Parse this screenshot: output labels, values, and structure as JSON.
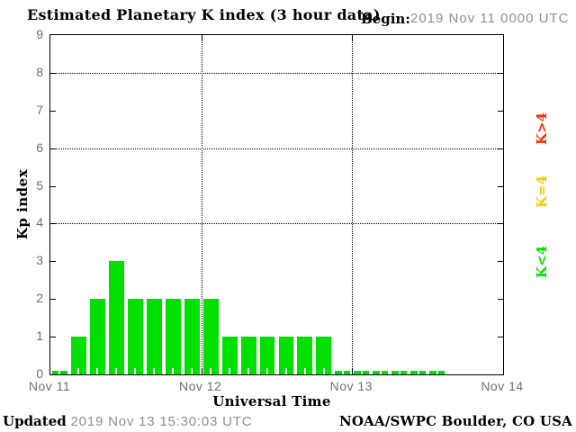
{
  "title": "Estimated Planetary K index (3 hour data)",
  "begin": {
    "label": "Begin:",
    "value": "2019 Nov 11 0000 UTC"
  },
  "footer": {
    "updated_label": "Updated",
    "updated_value": "2019 Nov 13 15:30:03 UTC",
    "source": "NOAA/SWPC Boulder, CO USA"
  },
  "chart_data": {
    "type": "bar",
    "title": "Estimated Planetary K index (3 hour data)",
    "xlabel": "Universal Time",
    "ylabel": "Kp index",
    "ylim": [
      0,
      9
    ],
    "yticks": [
      0,
      1,
      2,
      3,
      4,
      5,
      6,
      7,
      8,
      9
    ],
    "gridlines_y": [
      4,
      6,
      8
    ],
    "grid_style": "dotted",
    "x_tick_labels": [
      "Nov 11",
      "Nov 12",
      "Nov 13",
      "Nov 14"
    ],
    "bin_hours": 3,
    "bins_per_day": 8,
    "series": [
      {
        "date": "Nov 11",
        "values": [
          0,
          1,
          2,
          3,
          2,
          2,
          2,
          2
        ]
      },
      {
        "date": "Nov 12",
        "values": [
          2,
          1,
          1,
          1,
          1,
          1,
          1,
          0
        ]
      },
      {
        "date": "Nov 13",
        "values": [
          0,
          0,
          0,
          0,
          0
        ]
      }
    ],
    "bar_color": "#00e000",
    "axis_color": "#000000",
    "tick_label_color": "#707070",
    "legend_position": "right",
    "legend": [
      {
        "label": "K>4",
        "color": "#ff2800"
      },
      {
        "label": "K=4",
        "color": "#ffc800"
      },
      {
        "label": "K<4",
        "color": "#00e000"
      }
    ]
  }
}
